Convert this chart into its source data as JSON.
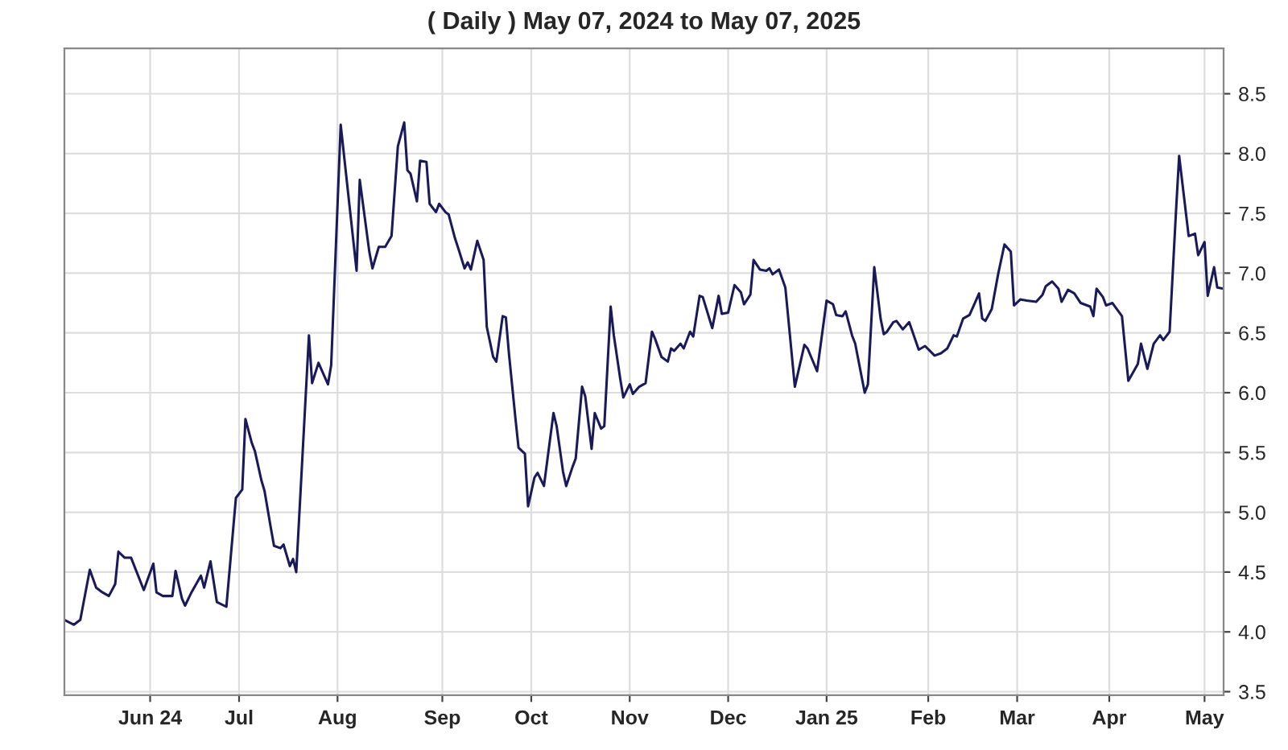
{
  "chart_data": {
    "type": "line",
    "title": "( Daily ) May 07, 2024 to May 07, 2025",
    "x": [
      "2024-05-07",
      "2024-05-10",
      "2024-05-12",
      "2024-05-15",
      "2024-05-17",
      "2024-05-19",
      "2024-05-21",
      "2024-05-23",
      "2024-05-24",
      "2024-05-26",
      "2024-05-28",
      "2024-06-01",
      "2024-06-04",
      "2024-06-05",
      "2024-06-07",
      "2024-06-10",
      "2024-06-11",
      "2024-06-13",
      "2024-06-14",
      "2024-06-16",
      "2024-06-19",
      "2024-06-20",
      "2024-06-22",
      "2024-06-24",
      "2024-06-27",
      "2024-06-30",
      "2024-07-02",
      "2024-07-03",
      "2024-07-05",
      "2024-07-06",
      "2024-07-08",
      "2024-07-09",
      "2024-07-11",
      "2024-07-12",
      "2024-07-14",
      "2024-07-15",
      "2024-07-17",
      "2024-07-18",
      "2024-07-19",
      "2024-07-23",
      "2024-07-24",
      "2024-07-26",
      "2024-07-29",
      "2024-07-30",
      "2024-08-02",
      "2024-08-07",
      "2024-08-08",
      "2024-08-11",
      "2024-08-12",
      "2024-08-14",
      "2024-08-16",
      "2024-08-18",
      "2024-08-20",
      "2024-08-22",
      "2024-08-23",
      "2024-08-24",
      "2024-08-26",
      "2024-08-27",
      "2024-08-29",
      "2024-08-30",
      "2024-09-01",
      "2024-09-02",
      "2024-09-04",
      "2024-09-05",
      "2024-09-07",
      "2024-09-08",
      "2024-09-10",
      "2024-09-11",
      "2024-09-12",
      "2024-09-14",
      "2024-09-16",
      "2024-09-17",
      "2024-09-19",
      "2024-09-20",
      "2024-09-22",
      "2024-09-23",
      "2024-09-24",
      "2024-09-26",
      "2024-09-27",
      "2024-09-29",
      "2024-09-30",
      "2024-10-02",
      "2024-10-03",
      "2024-10-05",
      "2024-10-08",
      "2024-10-09",
      "2024-10-11",
      "2024-10-12",
      "2024-10-14",
      "2024-10-15",
      "2024-10-17",
      "2024-10-18",
      "2024-10-20",
      "2024-10-21",
      "2024-10-23",
      "2024-10-24",
      "2024-10-26",
      "2024-10-27",
      "2024-10-29",
      "2024-10-30",
      "2024-11-01",
      "2024-11-02",
      "2024-11-04",
      "2024-11-06",
      "2024-11-08",
      "2024-11-09",
      "2024-11-11",
      "2024-11-13",
      "2024-11-14",
      "2024-11-15",
      "2024-11-17",
      "2024-11-18",
      "2024-11-20",
      "2024-11-21",
      "2024-11-23",
      "2024-11-24",
      "2024-11-27",
      "2024-11-29",
      "2024-11-30",
      "2024-12-02",
      "2024-12-04",
      "2024-12-06",
      "2024-12-07",
      "2024-12-09",
      "2024-12-10",
      "2024-12-12",
      "2024-12-14",
      "2024-12-15",
      "2024-12-16",
      "2024-12-18",
      "2024-12-20",
      "2024-12-23",
      "2024-12-26",
      "2024-12-27",
      "2024-12-30",
      "2025-01-02",
      "2025-01-04",
      "2025-01-05",
      "2025-01-07",
      "2025-01-08",
      "2025-01-10",
      "2025-01-11",
      "2025-01-14",
      "2025-01-15",
      "2025-01-17",
      "2025-01-19",
      "2025-01-20",
      "2025-01-21",
      "2025-01-23",
      "2025-01-24",
      "2025-01-26",
      "2025-01-28",
      "2025-01-31",
      "2025-02-02",
      "2025-02-05",
      "2025-02-07",
      "2025-02-09",
      "2025-02-11",
      "2025-02-12",
      "2025-02-14",
      "2025-02-16",
      "2025-02-18",
      "2025-02-19",
      "2025-02-20",
      "2025-02-21",
      "2025-02-23",
      "2025-02-25",
      "2025-02-27",
      "2025-03-01",
      "2025-03-02",
      "2025-03-04",
      "2025-03-06",
      "2025-03-09",
      "2025-03-11",
      "2025-03-12",
      "2025-03-14",
      "2025-03-16",
      "2025-03-17",
      "2025-03-19",
      "2025-03-21",
      "2025-03-23",
      "2025-03-26",
      "2025-03-27",
      "2025-03-28",
      "2025-03-30",
      "2025-03-31",
      "2025-04-02",
      "2025-04-05",
      "2025-04-07",
      "2025-04-10",
      "2025-04-11",
      "2025-04-13",
      "2025-04-15",
      "2025-04-17",
      "2025-04-18",
      "2025-04-20",
      "2025-04-22",
      "2025-04-23",
      "2025-04-26",
      "2025-04-28",
      "2025-04-29",
      "2025-05-01",
      "2025-05-02",
      "2025-05-04",
      "2025-05-05",
      "2025-05-07"
    ],
    "series": [
      {
        "color": "#1a1a5a",
        "values": [
          4.1,
          4.06,
          4.1,
          4.52,
          4.37,
          4.33,
          4.3,
          4.4,
          4.67,
          4.62,
          4.62,
          4.35,
          4.57,
          4.33,
          4.3,
          4.3,
          4.51,
          4.28,
          4.22,
          4.33,
          4.47,
          4.37,
          4.59,
          4.25,
          4.21,
          5.12,
          5.19,
          5.78,
          5.58,
          5.51,
          5.27,
          5.18,
          4.87,
          4.72,
          4.7,
          4.73,
          4.55,
          4.61,
          4.5,
          6.48,
          6.08,
          6.25,
          6.07,
          6.23,
          8.24,
          7.02,
          7.78,
          7.18,
          7.04,
          7.22,
          7.22,
          7.31,
          8.06,
          8.26,
          7.86,
          7.83,
          7.6,
          7.94,
          7.93,
          7.58,
          7.51,
          7.58,
          7.51,
          7.49,
          7.29,
          7.21,
          7.04,
          7.09,
          7.03,
          7.27,
          7.11,
          6.55,
          6.3,
          6.26,
          6.64,
          6.63,
          6.32,
          5.79,
          5.54,
          5.49,
          5.05,
          5.29,
          5.33,
          5.22,
          5.83,
          5.72,
          5.34,
          5.22,
          5.38,
          5.45,
          6.05,
          5.97,
          5.53,
          5.83,
          5.7,
          5.72,
          6.72,
          6.48,
          6.12,
          5.96,
          6.07,
          5.99,
          6.05,
          6.08,
          6.51,
          6.45,
          6.3,
          6.26,
          6.37,
          6.35,
          6.41,
          6.37,
          6.51,
          6.47,
          6.81,
          6.8,
          6.54,
          6.81,
          6.66,
          6.67,
          6.9,
          6.84,
          6.74,
          6.82,
          7.11,
          7.03,
          7.02,
          7.04,
          6.99,
          7.03,
          6.88,
          6.05,
          6.4,
          6.37,
          6.18,
          6.77,
          6.74,
          6.65,
          6.64,
          6.68,
          6.48,
          6.41,
          6.0,
          6.07,
          7.05,
          6.62,
          6.49,
          6.51,
          6.59,
          6.6,
          6.53,
          6.59,
          6.36,
          6.39,
          6.31,
          6.33,
          6.37,
          6.48,
          6.47,
          6.62,
          6.65,
          6.77,
          6.83,
          6.62,
          6.6,
          6.7,
          6.99,
          7.24,
          7.18,
          6.73,
          6.78,
          6.77,
          6.76,
          6.82,
          6.89,
          6.93,
          6.87,
          6.76,
          6.86,
          6.83,
          6.75,
          6.72,
          6.64,
          6.87,
          6.8,
          6.73,
          6.75,
          6.64,
          6.1,
          6.24,
          6.41,
          6.2,
          6.41,
          6.48,
          6.44,
          6.51,
          7.51,
          7.98,
          7.31,
          7.33,
          7.15,
          7.26,
          6.81,
          7.05,
          6.88,
          6.87
        ]
      }
    ],
    "xlim": [
      "2024-05-07",
      "2025-05-07"
    ],
    "xticks": [
      {
        "value": "2024-06-03",
        "label": "Jun 24"
      },
      {
        "value": "2024-07-01",
        "label": "Jul"
      },
      {
        "value": "2024-08-01",
        "label": "Aug"
      },
      {
        "value": "2024-09-03",
        "label": "Sep"
      },
      {
        "value": "2024-10-01",
        "label": "Oct"
      },
      {
        "value": "2024-11-01",
        "label": "Nov"
      },
      {
        "value": "2024-12-02",
        "label": "Dec"
      },
      {
        "value": "2025-01-02",
        "label": "Jan 25"
      },
      {
        "value": "2025-02-03",
        "label": "Feb"
      },
      {
        "value": "2025-03-03",
        "label": "Mar"
      },
      {
        "value": "2025-04-01",
        "label": "Apr"
      },
      {
        "value": "2025-05-01",
        "label": "May"
      }
    ],
    "ylim": [
      3.47,
      8.88
    ],
    "yticks": [
      3.5,
      {
        "value": 4,
        "label": "4.0"
      },
      4.5,
      {
        "value": 5,
        "label": "5.0"
      },
      5.5,
      {
        "value": 6,
        "label": "6.0"
      },
      6.5,
      {
        "value": 7,
        "label": "7.0"
      },
      7.5,
      {
        "value": 8,
        "label": "8.0"
      },
      8.5
    ],
    "grid": true,
    "legend": false,
    "marker": "none",
    "line_style": "solid"
  }
}
